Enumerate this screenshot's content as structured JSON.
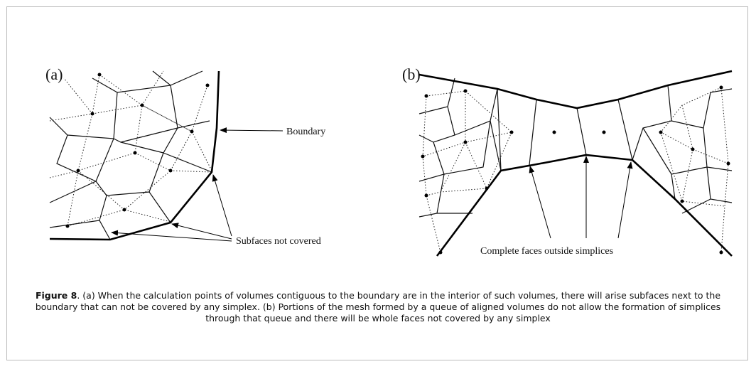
{
  "figure": {
    "panels": [
      {
        "label": "(a)",
        "annotations": [
          "Boundary",
          "Subfaces not covered"
        ]
      },
      {
        "label": "(b)",
        "annotations": [
          "Complete faces outside simplices"
        ]
      }
    ],
    "caption": {
      "label": "Figure 8",
      "text": ". (a) When the calculation points of volumes contiguous to the boundary are in the interior of such volumes, there will arise subfaces next to the boundary that can not be covered by any simplex. (b) Portions of the mesh formed by a queue of aligned volumes do not allow the formation of simplices through that queue and there will be whole faces not covered by any simplex"
    }
  }
}
